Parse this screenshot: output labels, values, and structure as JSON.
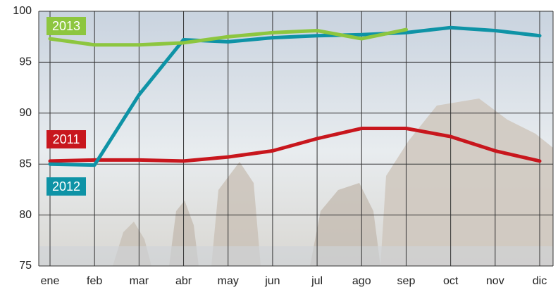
{
  "chart_data": {
    "type": "line",
    "categories": [
      "ene",
      "feb",
      "mar",
      "abr",
      "may",
      "jun",
      "jul",
      "ago",
      "sep",
      "oct",
      "nov",
      "dic"
    ],
    "series": [
      {
        "name": "2011",
        "color": "#c8161d",
        "values": [
          85.3,
          85.4,
          85.4,
          85.3,
          85.7,
          86.3,
          87.5,
          88.5,
          88.5,
          87.7,
          86.3,
          85.3
        ]
      },
      {
        "name": "2012",
        "color": "#0e93a6",
        "values": [
          85.0,
          84.9,
          91.8,
          97.2,
          97.0,
          97.4,
          97.6,
          97.7,
          97.9,
          98.4,
          98.1,
          97.6
        ]
      },
      {
        "name": "2013",
        "color": "#8dc63f",
        "values": [
          97.3,
          96.7,
          96.7,
          96.9,
          97.5,
          97.9,
          98.1,
          97.3,
          98.2,
          null,
          null,
          null
        ]
      }
    ],
    "ylim": [
      75,
      100
    ],
    "yticks": [
      75,
      80,
      85,
      90,
      95,
      100
    ],
    "grid": true
  }
}
